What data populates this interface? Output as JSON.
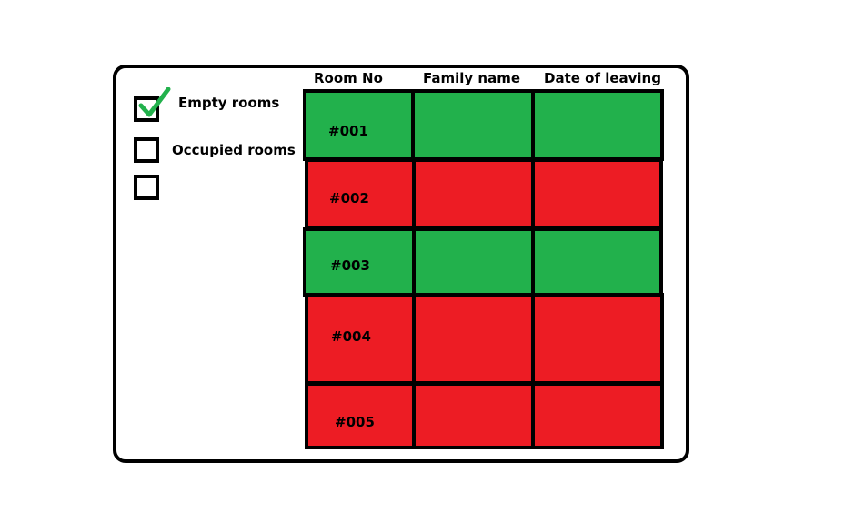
{
  "filters": [
    {
      "label": "Empty rooms",
      "checked": true
    },
    {
      "label": "Occupied rooms",
      "checked": false
    },
    {
      "label": "",
      "checked": false
    }
  ],
  "columns": [
    "Room No",
    "Family name",
    "Date of leaving"
  ],
  "rooms": [
    {
      "room_no": "#001",
      "family_name": "",
      "date_of_leaving": "",
      "status": "empty"
    },
    {
      "room_no": "#002",
      "family_name": "",
      "date_of_leaving": "",
      "status": "occupied"
    },
    {
      "room_no": "#003",
      "family_name": "",
      "date_of_leaving": "",
      "status": "empty"
    },
    {
      "room_no": "#004",
      "family_name": "",
      "date_of_leaving": "",
      "status": "occupied"
    },
    {
      "room_no": "#005",
      "family_name": "",
      "date_of_leaving": "",
      "status": "occupied"
    }
  ],
  "colors": {
    "empty": "#22b14c",
    "occupied": "#ed1c24",
    "checkmark": "#22b14c"
  },
  "icons": {
    "checkmark": "check-icon"
  }
}
